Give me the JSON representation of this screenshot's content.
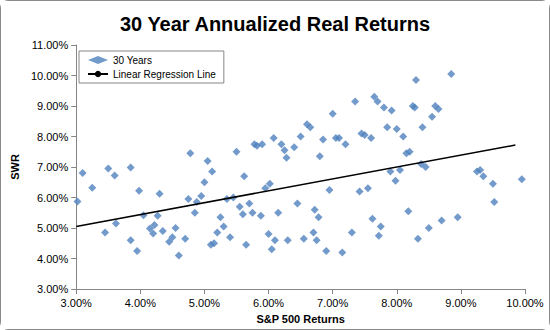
{
  "chart_data": {
    "type": "scatter",
    "title": "30 Year Annualized Real Returns",
    "x_label": "S&P 500 Returns",
    "y_label": "SWR",
    "xlim": [
      3,
      10
    ],
    "xticks": [
      {
        "value": 3,
        "label": "3.00%"
      },
      {
        "value": 4,
        "label": "4.00%"
      },
      {
        "value": 5,
        "label": "5.00%"
      },
      {
        "value": 6,
        "label": "6.00%"
      },
      {
        "value": 7,
        "label": "7.00%"
      },
      {
        "value": 8,
        "label": "8.00%"
      },
      {
        "value": 9,
        "label": "9.00%"
      },
      {
        "value": 10,
        "label": "10.00%"
      }
    ],
    "ylim": [
      3,
      11
    ],
    "yticks": [
      {
        "value": 3,
        "label": "3.00%"
      },
      {
        "value": 4,
        "label": "4.00%"
      },
      {
        "value": 5,
        "label": "5.00%"
      },
      {
        "value": 6,
        "label": "6.00%"
      },
      {
        "value": 7,
        "label": "7.00%"
      },
      {
        "value": 8,
        "label": "8.00%"
      },
      {
        "value": 9,
        "label": "9.00%"
      },
      {
        "value": 10,
        "label": "10.00%"
      },
      {
        "value": 11,
        "label": "11.00%"
      }
    ],
    "grid": false,
    "legend": "upper left",
    "series": [
      {
        "name": "30 Years",
        "type": "scatter",
        "color": "#4f81bd",
        "marker": "diamond",
        "x": [
          3.02,
          3.1,
          3.25,
          3.45,
          3.5,
          3.6,
          3.62,
          3.85,
          3.85,
          3.95,
          3.98,
          4.05,
          4.15,
          4.2,
          4.22,
          4.27,
          4.3,
          4.35,
          4.45,
          4.5,
          4.55,
          4.6,
          4.7,
          4.75,
          4.78,
          4.85,
          4.88,
          4.95,
          5.0,
          5.05,
          5.1,
          5.12,
          5.15,
          5.2,
          5.25,
          5.3,
          5.35,
          5.4,
          5.45,
          5.5,
          5.55,
          5.6,
          5.62,
          5.65,
          5.7,
          5.75,
          5.78,
          5.82,
          5.88,
          5.9,
          5.95,
          6.0,
          6.02,
          6.05,
          6.08,
          6.1,
          6.15,
          6.2,
          6.25,
          6.28,
          6.3,
          6.4,
          6.45,
          6.5,
          6.55,
          6.6,
          6.65,
          6.7,
          6.72,
          6.75,
          6.78,
          6.8,
          6.85,
          6.9,
          6.95,
          7.0,
          7.05,
          7.1,
          7.15,
          7.2,
          7.3,
          7.35,
          7.42,
          7.45,
          7.5,
          7.55,
          7.6,
          7.62,
          7.65,
          7.7,
          7.72,
          7.75,
          7.8,
          7.85,
          7.9,
          7.92,
          7.98,
          8.0,
          8.05,
          8.1,
          8.15,
          8.18,
          8.2,
          8.25,
          8.28,
          8.3,
          8.33,
          8.38,
          8.4,
          8.45,
          8.5,
          8.55,
          8.6,
          8.65,
          8.7,
          8.85,
          8.95,
          9.25,
          9.3,
          9.35,
          9.5,
          9.52,
          9.95
        ],
        "values": [
          5.87,
          6.8,
          6.32,
          4.85,
          6.95,
          6.72,
          5.15,
          4.6,
          6.98,
          4.25,
          6.22,
          5.42,
          4.98,
          4.82,
          5.1,
          5.4,
          6.12,
          4.9,
          4.55,
          4.7,
          5.0,
          4.1,
          4.65,
          5.95,
          7.45,
          5.5,
          5.85,
          6.05,
          6.5,
          7.2,
          4.45,
          6.85,
          4.5,
          4.85,
          5.35,
          5.05,
          5.95,
          4.7,
          6.0,
          7.5,
          5.7,
          5.45,
          6.7,
          4.45,
          5.8,
          5.5,
          7.75,
          7.7,
          5.4,
          7.75,
          6.3,
          4.8,
          6.45,
          4.3,
          7.95,
          4.6,
          5.5,
          7.75,
          7.55,
          7.3,
          4.6,
          7.65,
          5.8,
          8.0,
          4.65,
          8.4,
          8.3,
          4.85,
          5.6,
          4.6,
          5.35,
          7.35,
          7.9,
          4.25,
          6.25,
          8.75,
          7.95,
          7.95,
          4.2,
          7.75,
          4.85,
          9.15,
          6.2,
          8.1,
          8.05,
          6.3,
          7.95,
          5.3,
          9.3,
          9.15,
          4.75,
          5.05,
          8.95,
          8.3,
          6.85,
          8.85,
          6.55,
          8.25,
          6.9,
          8.0,
          7.45,
          5.55,
          7.5,
          9.0,
          8.95,
          9.85,
          4.65,
          7.1,
          8.3,
          7.0,
          5.0,
          8.65,
          9.0,
          8.9,
          5.25,
          10.05,
          5.35,
          6.85,
          6.9,
          6.7,
          6.45,
          5.85,
          6.6
        ]
      },
      {
        "name": "Linear Regression Line",
        "type": "line",
        "color": "#000000",
        "line_style": "solid",
        "x": [
          3.0,
          9.85
        ],
        "values": [
          5.05,
          7.72
        ]
      }
    ]
  }
}
